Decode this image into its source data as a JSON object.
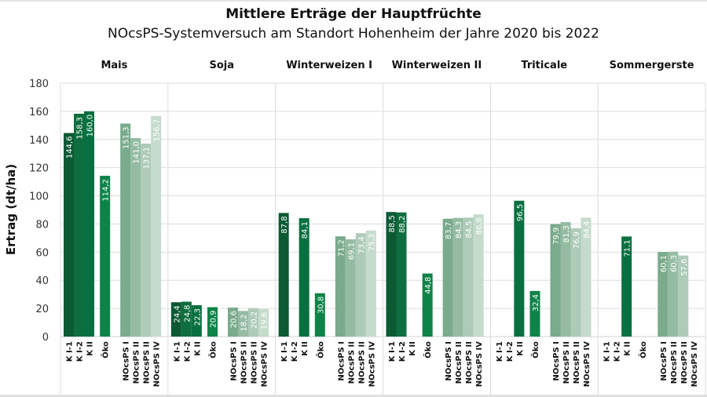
{
  "chart_data": {
    "type": "bar",
    "title": "Mittlere Erträge der Hauptfrüchte",
    "subtitle": "NOcsPS-Systemversuch am Standort Hohenheim der Jahre 2020 bis 2022",
    "xlabel": "",
    "ylabel": "Ertrag (dt/ha)",
    "ylim": [
      0,
      180
    ],
    "yticks": [
      0,
      20,
      40,
      60,
      80,
      100,
      120,
      140,
      160,
      180
    ],
    "grid": true,
    "legend": "none",
    "categories": [
      "K I-1",
      "K I-2",
      "K II",
      "Öko",
      "NOcsPS I",
      "NOcsPS II",
      "NOcsPS II",
      "NOcsPS IV"
    ],
    "category_groups": [
      [
        0,
        1,
        2
      ],
      [
        3
      ],
      [
        4,
        5,
        6,
        7
      ]
    ],
    "series_colors": [
      "#0b5a34",
      "#0f6e3f",
      "#087040",
      "#0e8348",
      "#7aab8c",
      "#95bca3",
      "#aecbb8",
      "#c5dbcc"
    ],
    "label_colors": [
      "#ffffff",
      "#ffffff",
      "#ffffff",
      "#ffffff",
      "#ffffff",
      "#ffffff",
      "#ffffff",
      "#ffffff"
    ],
    "panels": [
      {
        "name": "Mais",
        "values": [
          144.6,
          158.3,
          160.0,
          114.2,
          151.3,
          141.0,
          137.1,
          156.7
        ]
      },
      {
        "name": "Soja",
        "values": [
          24.4,
          24.8,
          22.3,
          20.9,
          20.6,
          18.2,
          20.2,
          19.6
        ]
      },
      {
        "name": "Winterweizen I",
        "values": [
          87.8,
          null,
          84.1,
          30.8,
          71.2,
          69.1,
          73.4,
          75.3
        ]
      },
      {
        "name": "Winterweizen II",
        "values": [
          88.5,
          88.2,
          null,
          44.8,
          83.7,
          84.3,
          84.5,
          86.8
        ]
      },
      {
        "name": "Triticale",
        "values": [
          null,
          null,
          96.5,
          32.4,
          79.9,
          81.3,
          76.9,
          84.4
        ]
      },
      {
        "name": "Sommergerste",
        "values": [
          null,
          null,
          71.1,
          null,
          60.1,
          60.3,
          57.6,
          null
        ]
      }
    ],
    "value_label_format": "comma-decimal-1"
  }
}
